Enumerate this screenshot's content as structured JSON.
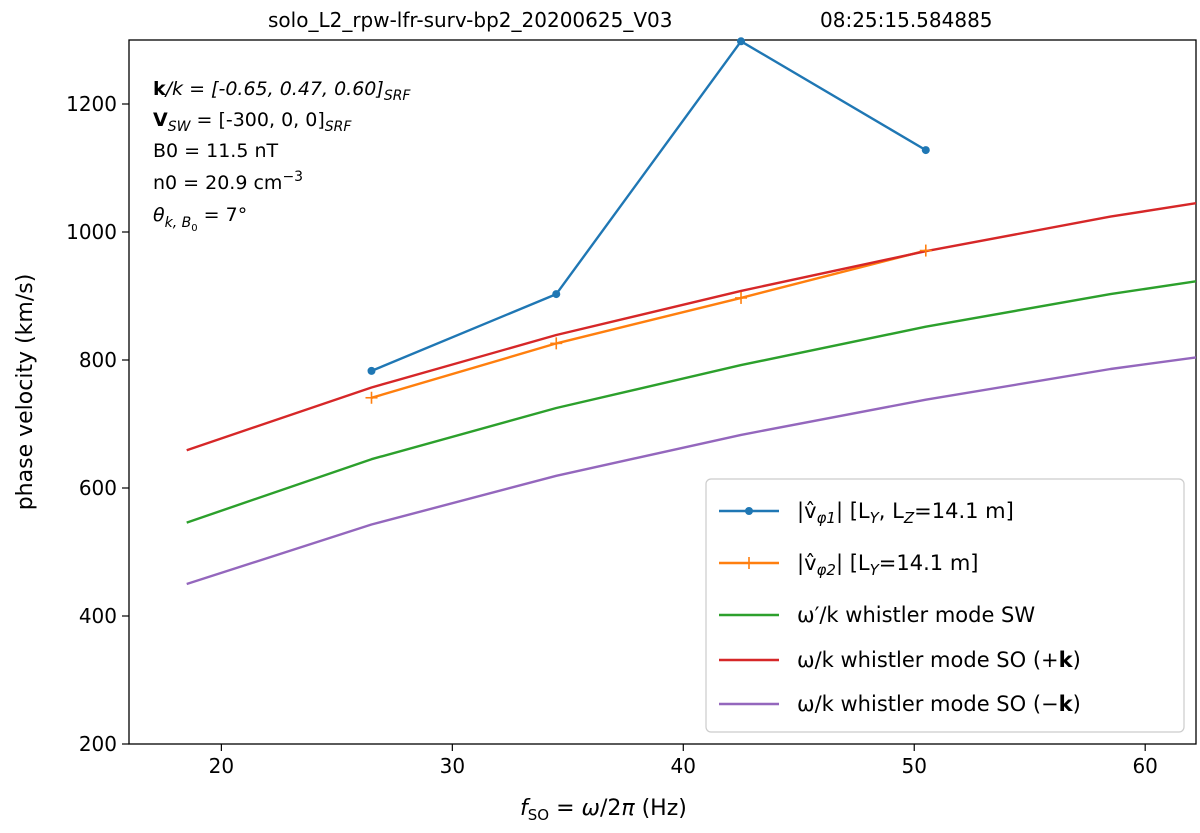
{
  "chart_data": {
    "type": "line",
    "title_left": "solo_L2_rpw-lfr-surv-bp2_20200625_V03",
    "title_right": "08:25:15.584885",
    "xlabel": "f_SO = ω/2π  (Hz)",
    "ylabel": "phase velocity (km/s)",
    "xlim": [
      16,
      62.2
    ],
    "ylim": [
      200,
      1300
    ],
    "xticks": [
      20,
      30,
      40,
      50,
      60
    ],
    "yticks": [
      200,
      400,
      600,
      800,
      1000,
      1200
    ],
    "annotations": {
      "k_line": "k/k = [-0.65, 0.47, 0.60]SRF",
      "k_bold": "k",
      "k_rest": "/k = [-0.65, 0.47, 0.60]",
      "k_sub": "SRF",
      "v_bold": "V",
      "v_sub1": "SW",
      "v_rest": " = [-300, 0, 0]",
      "v_sub2": "SRF",
      "b0": "B0 = 11.5 nT",
      "n0_main": "n0 = 20.9 cm",
      "n0_sup": "−3",
      "theta_main": "θ",
      "theta_sub": "k, B",
      "theta_sub0": "0",
      "theta_rest": " = 7°"
    },
    "series": [
      {
        "name": "|v̂φ1|   [LY, LZ=14.1 m]",
        "color": "#1f77b4",
        "marker": "dot",
        "x": [
          26.5,
          34.5,
          42.5,
          50.5
        ],
        "y": [
          783,
          903,
          1298,
          1128
        ]
      },
      {
        "name": "|v̂φ2|   [LY=14.1 m]",
        "color": "#ff7f0e",
        "marker": "plus",
        "x": [
          26.5,
          34.5,
          42.5,
          50.5
        ],
        "y": [
          741,
          826,
          897,
          971
        ]
      },
      {
        "name": "ω′/k whistler mode SW",
        "color": "#2ca02c",
        "marker": "none",
        "x": [
          18.5,
          26.5,
          34.5,
          42.5,
          50.5,
          58.5,
          62.2
        ],
        "y": [
          546,
          645,
          725,
          792,
          852,
          903,
          923
        ]
      },
      {
        "name": "ω/k whistler mode SO (+k)",
        "color": "#d62728",
        "marker": "none",
        "x": [
          18.5,
          26.5,
          34.5,
          42.5,
          50.5,
          58.5,
          62.2
        ],
        "y": [
          659,
          757,
          839,
          908,
          970,
          1024,
          1045
        ]
      },
      {
        "name": "ω/k whistler mode SO (−k)",
        "color": "#9467bd",
        "marker": "none",
        "x": [
          18.5,
          26.5,
          34.5,
          42.5,
          50.5,
          58.5,
          62.2
        ],
        "y": [
          450,
          543,
          619,
          683,
          738,
          786,
          804
        ]
      }
    ],
    "legend": {
      "position": "lower-right",
      "entries": [
        {
          "main": "|v̂",
          "sub": "φ1",
          "tail": "|    [L",
          "sub2": "Y",
          "mid": ", L",
          "sub3": "Z",
          "end": "=14.1 m]"
        },
        {
          "main": "|v̂",
          "sub": "φ2",
          "tail": "|    [L",
          "sub2": "Y",
          "mid": "",
          "sub3": "",
          "end": "=14.1 m]"
        },
        {
          "text": "ω′/k whistler mode SW"
        },
        {
          "pre": "ω/k whistler mode SO (+",
          "bold": "k",
          "post": ")"
        },
        {
          "pre": "ω/k whistler mode SO (−",
          "bold": "k",
          "post": ")"
        }
      ]
    }
  }
}
